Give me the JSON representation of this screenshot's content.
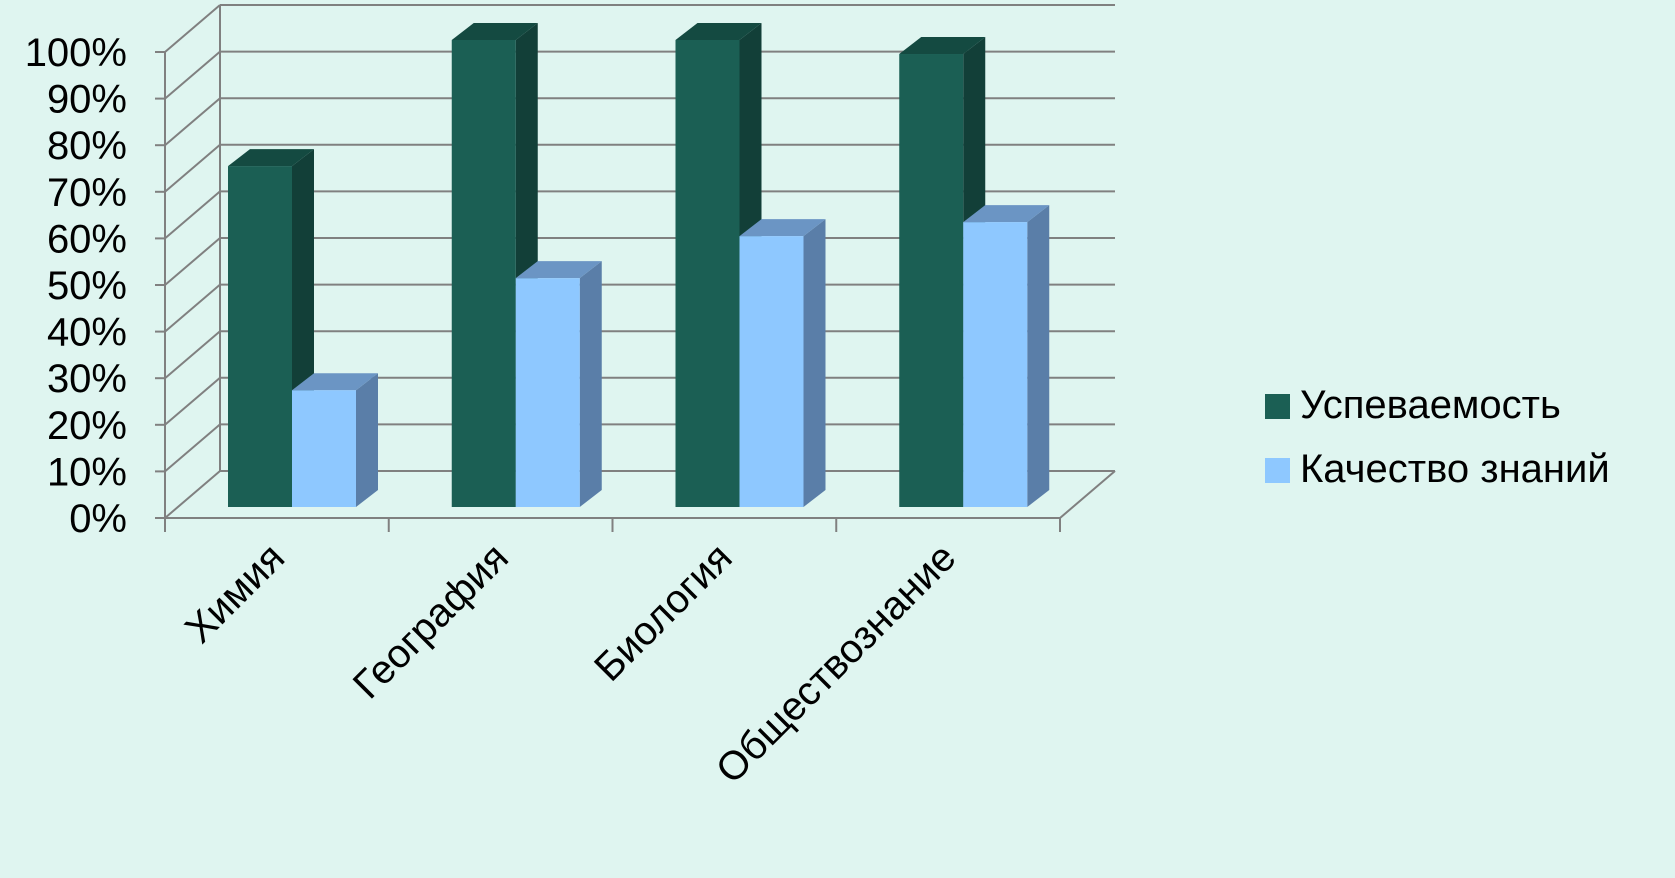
{
  "chart_data": {
    "type": "bar",
    "categories": [
      "Химия",
      "География",
      "Биология",
      "Обществознание"
    ],
    "series": [
      {
        "name": "Успеваемость",
        "values": [
          73,
          100,
          100,
          97
        ],
        "color": "#1b5f54",
        "side_color": "#123f38",
        "top_color": "#144a41"
      },
      {
        "name": "Качество знаний",
        "values": [
          25,
          49,
          58,
          61
        ],
        "color": "#8ec8ff",
        "side_color": "#5a7ea8",
        "top_color": "#6b95c4"
      }
    ],
    "y_ticks": [
      "0%",
      "10%",
      "20%",
      "30%",
      "40%",
      "50%",
      "60%",
      "70%",
      "80%",
      "90%",
      "100%"
    ],
    "ylim": [
      0,
      100
    ],
    "grid": true,
    "legend_position": "right",
    "grid_color": "#808080"
  }
}
